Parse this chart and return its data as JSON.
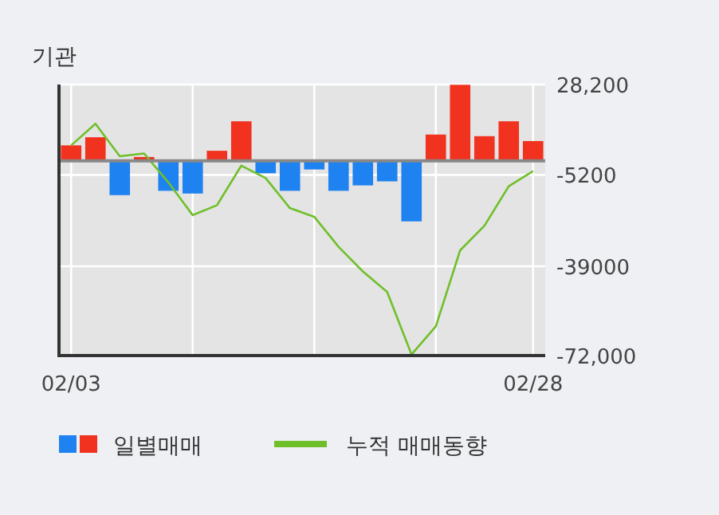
{
  "chart_data": {
    "type": "bar",
    "title": "기관",
    "categories": [
      "02/03",
      null,
      null,
      null,
      null,
      null,
      null,
      null,
      null,
      null,
      null,
      null,
      null,
      null,
      null,
      null,
      null,
      null,
      null,
      "02/28"
    ],
    "series": [
      {
        "name": "일별매매",
        "colors": [
          "#f0321e",
          "#f0321e",
          "#1e82f0",
          "#f0321e",
          "#1e82f0",
          "#1e82f0",
          "#f0321e",
          "#f0321e",
          "#1e82f0",
          "#1e82f0",
          "#1e82f0",
          "#1e82f0",
          "#1e82f0",
          "#1e82f0",
          "#1e82f0",
          "#f0321e",
          "#f0321e",
          "#f0321e",
          "#f0321e",
          "#f0321e"
        ],
        "values": [
          5700,
          8700,
          -12700,
          1400,
          -11100,
          -12100,
          3700,
          14600,
          -4600,
          -11100,
          -3200,
          -11100,
          -9100,
          -7600,
          -22400,
          9700,
          28100,
          9100,
          14600,
          7300
        ]
      },
      {
        "name": "누적 매매동향",
        "type": "line",
        "color": "#6fbf2a",
        "values": [
          5700,
          13700,
          1700,
          2700,
          -8000,
          -20100,
          -16400,
          -1800,
          -6400,
          -17500,
          -20700,
          -31800,
          -40900,
          -48500,
          -71600,
          -61200,
          -33100,
          -24000,
          -9400,
          -3800
        ]
      }
    ],
    "ylim": [
      -72000,
      28200
    ],
    "yticks": [
      {
        "value": 28200,
        "label": "28,200"
      },
      -5200,
      -39000,
      {
        "value": -72000,
        "label": "-72,000"
      }
    ],
    "grid": true,
    "legend": "bottom"
  }
}
